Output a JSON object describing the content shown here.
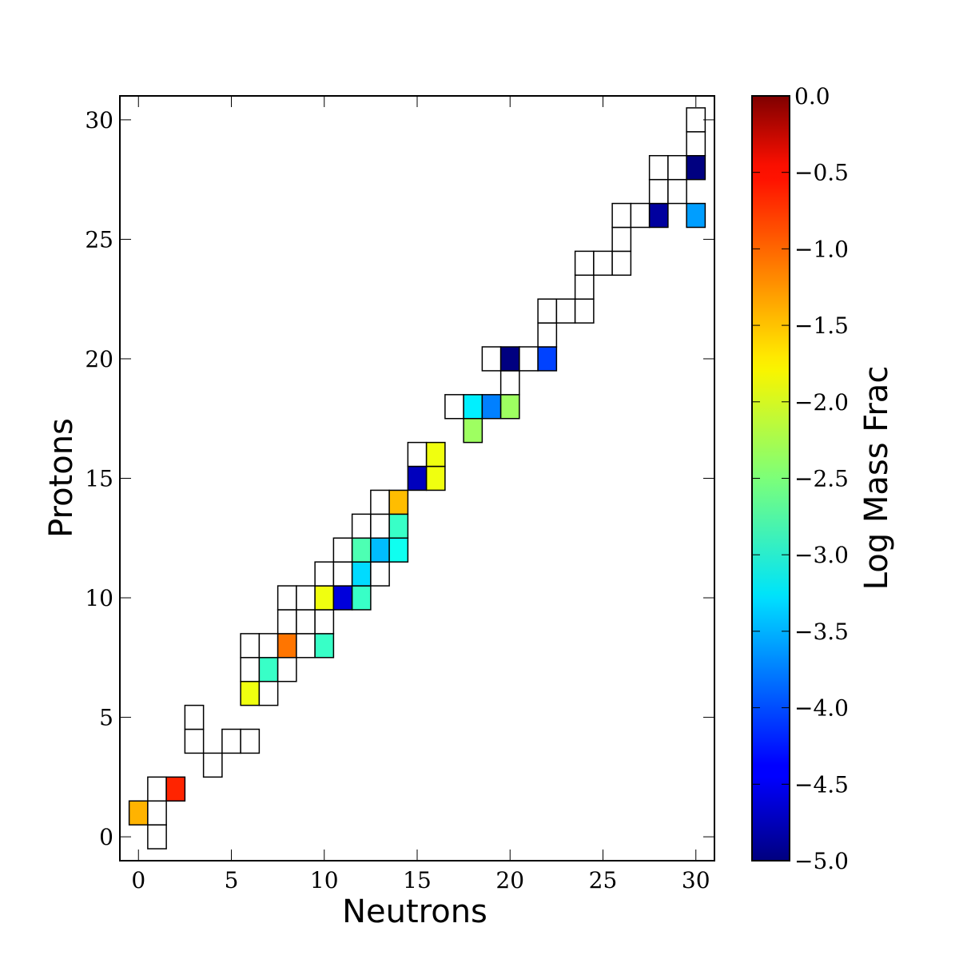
{
  "chart_data": {
    "type": "heatmap",
    "title": "",
    "xlabel": "Neutrons",
    "ylabel": "Protons",
    "xlim": [
      -1,
      31
    ],
    "ylim": [
      -1,
      31
    ],
    "xticks": [
      0,
      5,
      10,
      15,
      20,
      25,
      30
    ],
    "yticks": [
      0,
      5,
      10,
      15,
      20,
      25,
      30
    ],
    "grid": false,
    "colorbar": {
      "label": "Log Mass Frac",
      "colormap": "jet",
      "range": [
        -5.0,
        0.0
      ],
      "ticks": [
        "0.0",
        "−0.5",
        "−1.0",
        "−1.5",
        "−2.0",
        "−2.5",
        "−3.0",
        "−3.5",
        "−4.0",
        "−4.5",
        "−5.0"
      ]
    },
    "cells_note": "cells: [neutrons, protons, log_mass_frac or null for unfilled]",
    "cells": [
      [
        1,
        0,
        null
      ],
      [
        0,
        1,
        -1.5
      ],
      [
        1,
        1,
        null
      ],
      [
        1,
        2,
        null
      ],
      [
        2,
        2,
        -0.8
      ],
      [
        4,
        3,
        null
      ],
      [
        3,
        4,
        null
      ],
      [
        5,
        4,
        null
      ],
      [
        6,
        4,
        null
      ],
      [
        3,
        5,
        null
      ],
      [
        6,
        6,
        -1.95
      ],
      [
        7,
        6,
        null
      ],
      [
        6,
        7,
        null
      ],
      [
        7,
        7,
        -2.85
      ],
      [
        8,
        7,
        null
      ],
      [
        6,
        8,
        null
      ],
      [
        7,
        8,
        null
      ],
      [
        8,
        8,
        -1.2
      ],
      [
        9,
        8,
        null
      ],
      [
        10,
        8,
        -2.85
      ],
      [
        8,
        9,
        null
      ],
      [
        9,
        9,
        null
      ],
      [
        10,
        9,
        null
      ],
      [
        8,
        10,
        null
      ],
      [
        9,
        10,
        null
      ],
      [
        10,
        10,
        -1.95
      ],
      [
        11,
        10,
        -4.55
      ],
      [
        12,
        10,
        -2.85
      ],
      [
        10,
        11,
        null
      ],
      [
        11,
        11,
        null
      ],
      [
        12,
        11,
        -3.3
      ],
      [
        13,
        11,
        null
      ],
      [
        11,
        12,
        null
      ],
      [
        12,
        12,
        -2.75
      ],
      [
        13,
        12,
        -3.45
      ],
      [
        14,
        12,
        -3.05
      ],
      [
        12,
        13,
        null
      ],
      [
        13,
        13,
        null
      ],
      [
        14,
        13,
        -2.85
      ],
      [
        13,
        14,
        null
      ],
      [
        14,
        14,
        -1.55
      ],
      [
        15,
        15,
        -4.7
      ],
      [
        16,
        15,
        -1.95
      ],
      [
        15,
        16,
        null
      ],
      [
        16,
        16,
        -1.95
      ],
      [
        18,
        17,
        -2.35
      ],
      [
        17,
        18,
        null
      ],
      [
        18,
        18,
        -3.2
      ],
      [
        19,
        18,
        -3.75
      ],
      [
        20,
        18,
        -2.35
      ],
      [
        20,
        19,
        null
      ],
      [
        19,
        20,
        null
      ],
      [
        20,
        20,
        -5.0
      ],
      [
        21,
        20,
        null
      ],
      [
        22,
        20,
        -4.05
      ],
      [
        22,
        21,
        null
      ],
      [
        22,
        22,
        null
      ],
      [
        23,
        22,
        null
      ],
      [
        24,
        22,
        null
      ],
      [
        24,
        23,
        null
      ],
      [
        24,
        24,
        null
      ],
      [
        25,
        24,
        null
      ],
      [
        26,
        24,
        null
      ],
      [
        26,
        25,
        null
      ],
      [
        26,
        26,
        null
      ],
      [
        27,
        26,
        null
      ],
      [
        28,
        26,
        -4.85
      ],
      [
        30,
        26,
        -3.6
      ],
      [
        28,
        27,
        null
      ],
      [
        29,
        27,
        null
      ],
      [
        28,
        28,
        null
      ],
      [
        29,
        28,
        null
      ],
      [
        30,
        28,
        -5.0
      ],
      [
        30,
        29,
        null
      ],
      [
        30,
        30,
        null
      ]
    ]
  }
}
